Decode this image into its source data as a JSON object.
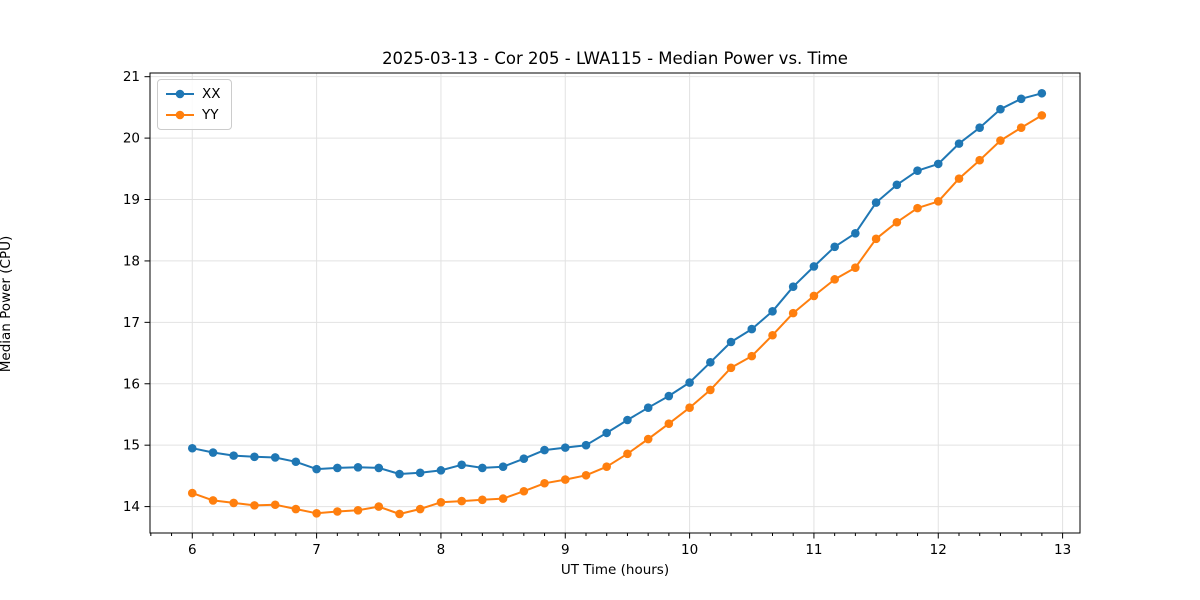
{
  "chart_data": {
    "type": "line",
    "title": "2025-03-13 - Cor 205 - LWA115 - Median Power vs. Time",
    "xlabel": "UT Time (hours)",
    "ylabel": "Median Power (CPU)",
    "xlim": [
      5.66,
      13.14
    ],
    "ylim": [
      13.57,
      21.06
    ],
    "x_ticks": [
      6,
      7,
      8,
      9,
      10,
      11,
      12,
      13
    ],
    "y_ticks": [
      14,
      15,
      16,
      17,
      18,
      19,
      20,
      21
    ],
    "x_minor_step": 0.166667,
    "grid": true,
    "grid_color": "#e2e2e2",
    "legend_position": "upper left",
    "background": "#ffffff",
    "x": [
      6.0,
      6.167,
      6.333,
      6.5,
      6.667,
      6.833,
      7.0,
      7.167,
      7.333,
      7.5,
      7.667,
      7.833,
      8.0,
      8.167,
      8.333,
      8.5,
      8.667,
      8.833,
      9.0,
      9.167,
      9.333,
      9.5,
      9.667,
      9.833,
      10.0,
      10.167,
      10.333,
      10.5,
      10.667,
      10.833,
      11.0,
      11.167,
      11.333,
      11.5,
      11.667,
      11.833,
      12.0,
      12.167,
      12.333,
      12.5,
      12.667,
      12.833
    ],
    "series": [
      {
        "name": "XX",
        "color": "#1f77b4",
        "values": [
          14.95,
          14.88,
          14.83,
          14.81,
          14.8,
          14.73,
          14.61,
          14.63,
          14.64,
          14.63,
          14.53,
          14.55,
          14.59,
          14.68,
          14.63,
          14.65,
          14.78,
          14.92,
          14.96,
          15.0,
          15.2,
          15.41,
          15.61,
          15.8,
          16.02,
          16.35,
          16.68,
          16.89,
          17.18,
          17.58,
          17.91,
          18.23,
          18.45,
          18.95,
          19.24,
          19.47,
          19.58,
          19.91,
          20.17,
          20.47,
          20.64,
          20.73
        ]
      },
      {
        "name": "YY",
        "color": "#ff7f0e",
        "values": [
          14.22,
          14.1,
          14.06,
          14.02,
          14.03,
          13.96,
          13.89,
          13.92,
          13.94,
          14.0,
          13.88,
          13.96,
          14.07,
          14.09,
          14.11,
          14.13,
          14.25,
          14.38,
          14.44,
          14.51,
          14.65,
          14.86,
          15.1,
          15.35,
          15.61,
          15.9,
          16.26,
          16.45,
          16.79,
          17.15,
          17.43,
          17.7,
          17.89,
          18.36,
          18.63,
          18.86,
          18.97,
          19.34,
          19.64,
          19.96,
          20.17,
          20.37
        ]
      }
    ]
  }
}
